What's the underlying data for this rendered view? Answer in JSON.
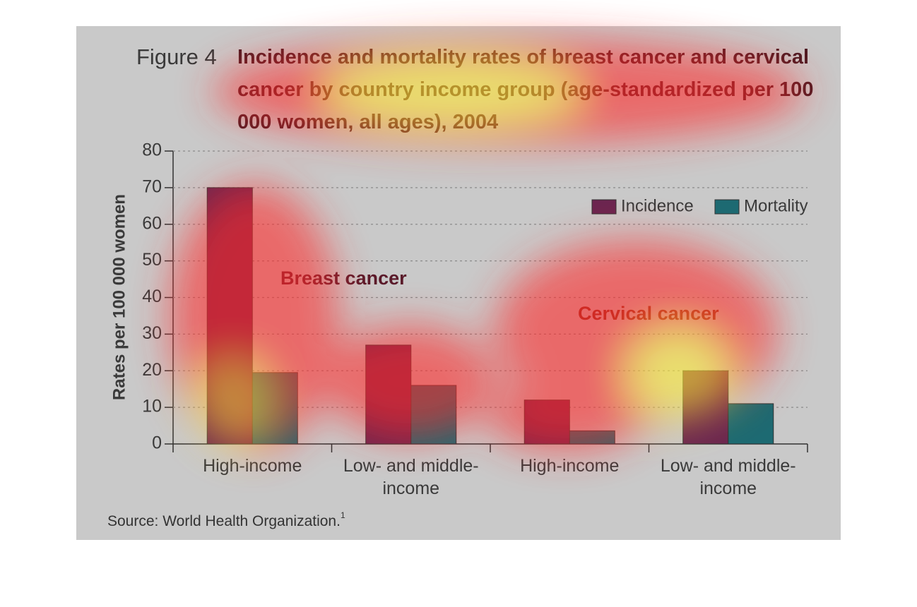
{
  "chart_data": {
    "type": "bar",
    "figure_label": "Figure 4",
    "title": "Incidence and mortality rates of breast cancer and cervical cancer by country income group (age-standardized per 100 000 women, all ages), 2004",
    "ylabel": "Rates per 100 000 women",
    "categories": [
      "High-income",
      "Low- and middle-income",
      "High-income",
      "Low- and middle-income"
    ],
    "group_labels": [
      "Breast cancer",
      "Cervical cancer"
    ],
    "series": [
      {
        "name": "Incidence",
        "color": "#6b2650",
        "values": [
          70,
          27,
          12,
          20
        ]
      },
      {
        "name": "Mortality",
        "color": "#1d6a72",
        "values": [
          19.5,
          16,
          3.6,
          11
        ]
      }
    ],
    "ylim": [
      0,
      80
    ],
    "yticks": [
      0,
      10,
      20,
      30,
      40,
      50,
      60,
      70,
      80
    ],
    "grid": true,
    "legend": "upper right",
    "source": "Source: World Health Organization.",
    "source_note": "1"
  }
}
